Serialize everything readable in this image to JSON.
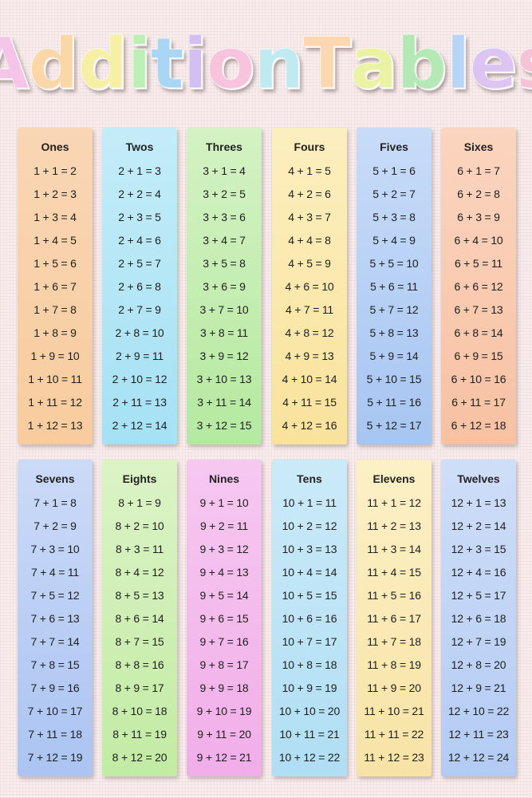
{
  "title": {
    "text": "Addition Tables",
    "letter_colors": [
      "#f4c5e8",
      "#fbd7a7",
      "#f6f0a6",
      "#bbefb3",
      "#a9d6f5",
      "#d4bff3",
      "#f7c3dd",
      "#bfeaf2",
      "#fcd7b0",
      "#ecf2a4",
      "#b4e8b5",
      "#b8d5f6",
      "#dcc4f3",
      "#f6c3d6",
      "#c5ecf1"
    ]
  },
  "tables": [
    {
      "name": "Ones",
      "colors": [
        "#f9d6b4",
        "#f8cc9e"
      ],
      "equations": [
        "1 + 1 = 2",
        "1 + 2 = 3",
        "1 + 3 = 4",
        "1 + 4 = 5",
        "1 + 5 = 6",
        "1 + 6 = 7",
        "1 + 7 = 8",
        "1 + 8 = 9",
        "1 + 9 = 10",
        "1 + 10 = 11",
        "1 + 11 = 12",
        "1 + 12 = 13"
      ]
    },
    {
      "name": "Twos",
      "colors": [
        "#c4ecf8",
        "#a5e1f4"
      ],
      "equations": [
        "2 + 1 = 3",
        "2 + 2 = 4",
        "2 + 3 = 5",
        "2 + 4 = 6",
        "2 + 5 = 7",
        "2 + 6 = 8",
        "2 + 7 = 9",
        "2 + 8 = 10",
        "2 + 9 = 11",
        "2 + 10 = 12",
        "2 + 11 = 13",
        "2 + 12 = 14"
      ]
    },
    {
      "name": "Threes",
      "colors": [
        "#d4f2c4",
        "#b5e9a0"
      ],
      "equations": [
        "3 + 1 = 4",
        "3 + 2 = 5",
        "3 + 3 = 6",
        "3 + 4 = 7",
        "3 + 5 = 8",
        "3 + 6 = 9",
        "3 + 7 = 10",
        "3 + 8 = 11",
        "3 + 9 = 12",
        "3 + 10 = 13",
        "3 + 11 = 14",
        "3 + 12 = 15"
      ]
    },
    {
      "name": "Fours",
      "colors": [
        "#fcefbf",
        "#f9e29c"
      ],
      "equations": [
        "4 + 1 = 5",
        "4 + 2 = 6",
        "4 + 3 = 7",
        "4 + 4 = 8",
        "4 + 5 = 9",
        "4 + 6 = 10",
        "4 + 7 = 11",
        "4 + 8 = 12",
        "4 + 9 = 13",
        "4 + 10 = 14",
        "4 + 11 = 15",
        "4 + 12 = 16"
      ]
    },
    {
      "name": "Fives",
      "colors": [
        "#c8dcf8",
        "#a7c5f2"
      ],
      "equations": [
        "5 + 1 = 6",
        "5 + 2 = 7",
        "5 + 3 = 8",
        "5 + 4 = 9",
        "5 + 5 = 10",
        "5 + 6 = 11",
        "5 + 7 = 12",
        "5 + 8 = 13",
        "5 + 9 = 14",
        "5 + 10 = 15",
        "5 + 11 = 16",
        "5 + 12 = 17"
      ]
    },
    {
      "name": "Sixes",
      "colors": [
        "#fbd5c0",
        "#f8c1a2"
      ],
      "equations": [
        "6 + 1 = 7",
        "6 + 2 = 8",
        "6 + 3 = 9",
        "6 + 4 = 10",
        "6 + 5 = 11",
        "6 + 6 = 12",
        "6 + 7 = 13",
        "6 + 8 = 14",
        "6 + 9 = 15",
        "6 + 10 = 16",
        "6 + 11 = 17",
        "6 + 12 = 18"
      ]
    },
    {
      "name": "Sevens",
      "colors": [
        "#cbdaf7",
        "#abc4f2"
      ],
      "equations": [
        "7 + 1 = 8",
        "7 + 2 = 9",
        "7 + 3 = 10",
        "7 + 4 = 11",
        "7 + 5 = 12",
        "7 + 6 = 13",
        "7 + 7 = 14",
        "7 + 8 = 15",
        "7 + 9 = 16",
        "7 + 10 = 17",
        "7 + 11 = 18",
        "7 + 12 = 19"
      ]
    },
    {
      "name": "Eights",
      "colors": [
        "#dcf3c6",
        "#c2eba4"
      ],
      "equations": [
        "8 + 1 = 9",
        "8 + 2 = 10",
        "8 + 3 = 11",
        "8 + 4 = 12",
        "8 + 5 = 13",
        "8 + 6 = 14",
        "8 + 7 = 15",
        "8 + 8 = 16",
        "8 + 9 = 17",
        "8 + 10 = 18",
        "8 + 11 = 19",
        "8 + 12 = 20"
      ]
    },
    {
      "name": "Nines",
      "colors": [
        "#f6c8f0",
        "#f1aee9"
      ],
      "equations": [
        "9 + 1 = 10",
        "9 + 2 = 11",
        "9 + 3 = 12",
        "9 + 4 = 13",
        "9 + 5 = 14",
        "9 + 6 = 15",
        "9 + 7 = 16",
        "9 + 8 = 17",
        "9 + 9 = 18",
        "9 + 10 = 19",
        "9 + 11 = 20",
        "9 + 12 = 21"
      ]
    },
    {
      "name": "Tens",
      "colors": [
        "#cbeaf8",
        "#b0def4"
      ],
      "equations": [
        "10 + 1 = 11",
        "10 + 2 = 12",
        "10 + 3 = 13",
        "10 + 4 = 14",
        "10 + 5 = 15",
        "10 + 6 = 16",
        "10 + 7 = 17",
        "10 + 8 = 18",
        "10 + 9 = 19",
        "10 + 10 = 20",
        "10 + 11 = 21",
        "10 + 12 = 22"
      ]
    },
    {
      "name": "Elevens",
      "colors": [
        "#fcf0c6",
        "#f8e3a5"
      ],
      "equations": [
        "11 + 1 = 12",
        "11 + 2 = 13",
        "11 + 3 = 14",
        "11 + 4 = 15",
        "11 + 5 = 16",
        "11 + 6 = 17",
        "11 + 7 = 18",
        "11 + 8 = 19",
        "11 + 9 = 20",
        "11 + 10 = 21",
        "11 + 11 = 22",
        "11 + 12 = 23"
      ]
    },
    {
      "name": "Twelves",
      "colors": [
        "#cfdef8",
        "#b3cbf3"
      ],
      "equations": [
        "12 + 1 = 13",
        "12 + 2 = 14",
        "12 + 3 = 15",
        "12 + 4 = 16",
        "12 + 5 = 17",
        "12 + 6 = 18",
        "12 + 7 = 19",
        "12 + 8 = 20",
        "12 + 9 = 21",
        "12 + 10 = 22",
        "12 + 11 = 23",
        "12 + 12 = 24"
      ]
    }
  ]
}
